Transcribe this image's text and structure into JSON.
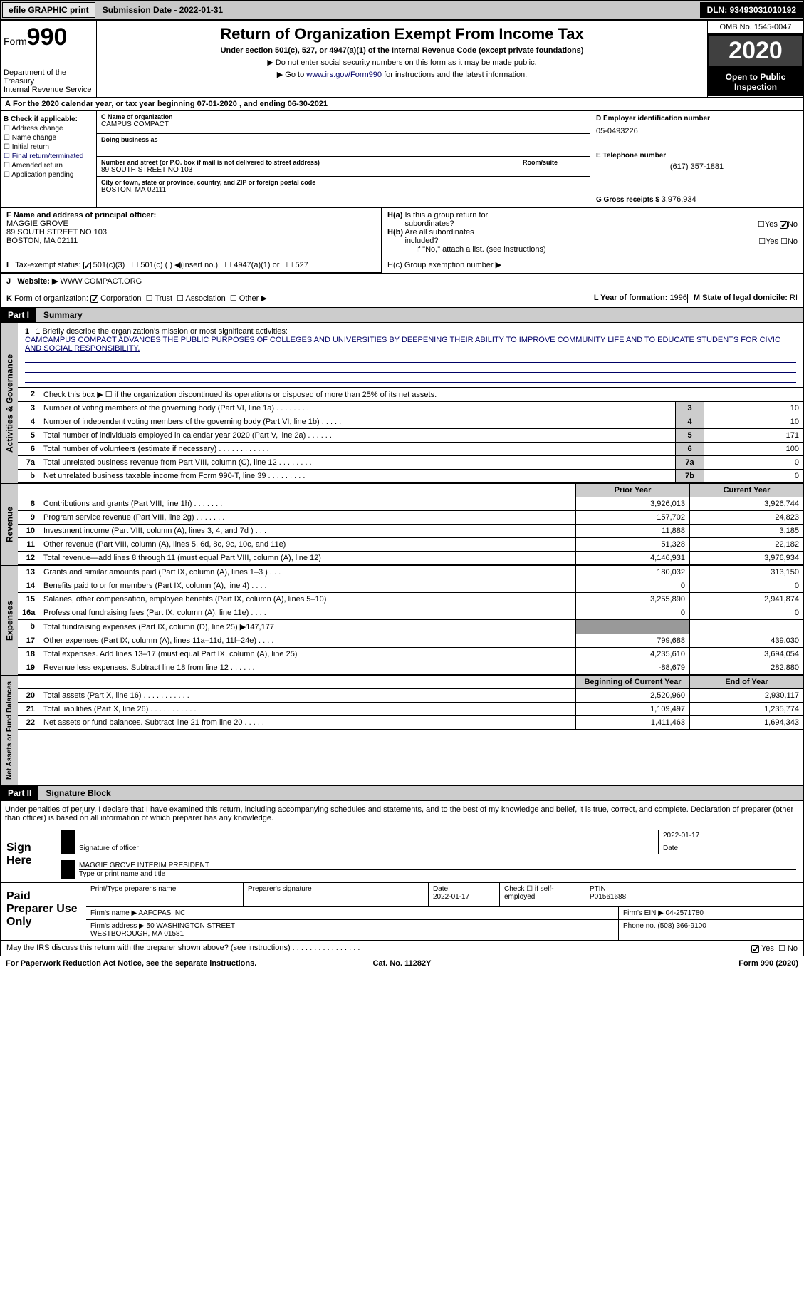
{
  "topbar": {
    "efile": "efile GRAPHIC print",
    "submission_label": "Submission Date - ",
    "submission_date": "2022-01-31",
    "dln_label": "DLN: ",
    "dln": "93493031010192"
  },
  "header": {
    "form": "Form",
    "form_num": "990",
    "dept": "Department of the Treasury\nInternal Revenue Service",
    "title": "Return of Organization Exempt From Income Tax",
    "subtitle": "Under section 501(c), 527, or 4947(a)(1) of the Internal Revenue Code (except private foundations)",
    "arrow1": "▶ Do not enter social security numbers on this form as it may be made public.",
    "arrow2_pre": "▶ Go to ",
    "arrow2_link": "www.irs.gov/Form990",
    "arrow2_post": " for instructions and the latest information.",
    "omb": "OMB No. 1545-0047",
    "year": "2020",
    "open": "Open to Public Inspection"
  },
  "period": {
    "label_a": "A",
    "text": "For the 2020 calendar year, or tax year beginning 07-01-2020    , and ending 06-30-2021"
  },
  "section_b": {
    "label": "B Check if applicable:",
    "items": [
      "Address change",
      "Name change",
      "Initial return",
      "Final return/terminated",
      "Amended return",
      "Application pending"
    ]
  },
  "section_c": {
    "name_label": "C Name of organization",
    "name": "CAMPUS COMPACT",
    "dba_label": "Doing business as",
    "dba": "",
    "addr_label": "Number and street (or P.O. box if mail is not delivered to street address)",
    "addr": "89 SOUTH STREET NO 103",
    "room_label": "Room/suite",
    "room": "",
    "city_label": "City or town, state or province, country, and ZIP or foreign postal code",
    "city": "BOSTON, MA  02111"
  },
  "section_d": {
    "ein_label": "D Employer identification number",
    "ein": "05-0493226",
    "phone_label": "E Telephone number",
    "phone": "(617) 357-1881",
    "gross_label": "G Gross receipts $ ",
    "gross": "3,976,934"
  },
  "section_f": {
    "label": "F Name and address of principal officer:",
    "name": "MAGGIE GROVE",
    "addr": "89 SOUTH STREET NO 103\nBOSTON, MA  02111"
  },
  "section_h": {
    "ha_label": "H(a)  Is this a group return for subordinates?",
    "hb_label": "H(b)  Are all subordinates included?",
    "hb_note": "If \"No,\" attach a list. (see instructions)",
    "hc_label": "H(c)  Group exemption number ▶",
    "yes": "Yes",
    "no": "No"
  },
  "section_i": {
    "label": "I   Tax-exempt status:",
    "opts": [
      "501(c)(3)",
      "501(c) (  ) ◀(insert no.)",
      "4947(a)(1) or",
      "527"
    ]
  },
  "section_j": {
    "label": "J   Website: ▶",
    "val": "WWW.COMPACT.ORG"
  },
  "section_k": {
    "label": "K Form of organization:",
    "opts": [
      "Corporation",
      "Trust",
      "Association",
      "Other ▶"
    ],
    "l_label": "L Year of formation: ",
    "l_val": "1996",
    "m_label": "M State of legal domicile: ",
    "m_val": "RI"
  },
  "parts": {
    "p1": "Part I",
    "p1_title": "Summary",
    "p2": "Part II",
    "p2_title": "Signature Block"
  },
  "side_labels": {
    "gov": "Activities & Governance",
    "rev": "Revenue",
    "exp": "Expenses",
    "net": "Net Assets or Fund Balances"
  },
  "mission": {
    "label": "1   Briefly describe the organization's mission or most significant activities:",
    "text": "CAMCAMPUS COMPACT ADVANCES THE PUBLIC PURPOSES OF COLLEGES AND UNIVERSITIES BY DEEPENING THEIR ABILITY TO IMPROVE COMMUNITY LIFE AND TO EDUCATE STUDENTS FOR CIVIC AND SOCIAL RESPONSIBILITY."
  },
  "gov_rows": [
    {
      "n": "2",
      "t": "Check this box ▶ ☐  if the organization discontinued its operations or disposed of more than 25% of its net assets.",
      "bn": "",
      "v": ""
    },
    {
      "n": "3",
      "t": "Number of voting members of the governing body (Part VI, line 1a)   .    .    .    .    .    .    .    .",
      "bn": "3",
      "v": "10"
    },
    {
      "n": "4",
      "t": "Number of independent voting members of the governing body (Part VI, line 1b)   .    .    .    .    .",
      "bn": "4",
      "v": "10"
    },
    {
      "n": "5",
      "t": "Total number of individuals employed in calendar year 2020 (Part V, line 2a)   .    .    .    .    .    .",
      "bn": "5",
      "v": "171"
    },
    {
      "n": "6",
      "t": "Total number of volunteers (estimate if necessary)   .    .    .    .    .    .    .    .    .    .    .    .",
      "bn": "6",
      "v": "100"
    },
    {
      "n": "7a",
      "t": "Total unrelated business revenue from Part VIII, column (C), line 12   .    .    .    .    .    .    .    .",
      "bn": "7a",
      "v": "0"
    },
    {
      "n": "b",
      "t": "Net unrelated business taxable income from Form 990-T, line 39    .    .    .    .    .    .    .    .    .",
      "bn": "7b",
      "v": "0"
    }
  ],
  "fin_headers": {
    "prior": "Prior Year",
    "current": "Current Year",
    "begin": "Beginning of Current Year",
    "end": "End of Year"
  },
  "rev_rows": [
    {
      "n": "8",
      "t": "Contributions and grants (Part VIII, line 1h)   .    .    .    .    .    .    .",
      "c1": "3,926,013",
      "c2": "3,926,744"
    },
    {
      "n": "9",
      "t": "Program service revenue (Part VIII, line 2g)   .    .    .    .    .    .    .",
      "c1": "157,702",
      "c2": "24,823"
    },
    {
      "n": "10",
      "t": "Investment income (Part VIII, column (A), lines 3, 4, and 7d )   .    .    .",
      "c1": "11,888",
      "c2": "3,185"
    },
    {
      "n": "11",
      "t": "Other revenue (Part VIII, column (A), lines 5, 6d, 8c, 9c, 10c, and 11e)",
      "c1": "51,328",
      "c2": "22,182"
    },
    {
      "n": "12",
      "t": "Total revenue—add lines 8 through 11 (must equal Part VIII, column (A), line 12)",
      "c1": "4,146,931",
      "c2": "3,976,934"
    }
  ],
  "exp_rows": [
    {
      "n": "13",
      "t": "Grants and similar amounts paid (Part IX, column (A), lines 1–3 )   .    .    .",
      "c1": "180,032",
      "c2": "313,150"
    },
    {
      "n": "14",
      "t": "Benefits paid to or for members (Part IX, column (A), line 4)   .    .    .    .",
      "c1": "0",
      "c2": "0"
    },
    {
      "n": "15",
      "t": "Salaries, other compensation, employee benefits (Part IX, column (A), lines 5–10)",
      "c1": "3,255,890",
      "c2": "2,941,874"
    },
    {
      "n": "16a",
      "t": "Professional fundraising fees (Part IX, column (A), line 11e)   .    .    .    .",
      "c1": "0",
      "c2": "0"
    },
    {
      "n": "b",
      "t": "Total fundraising expenses (Part IX, column (D), line 25) ▶147,177",
      "c1": "",
      "c2": "",
      "shaded": true
    },
    {
      "n": "17",
      "t": "Other expenses (Part IX, column (A), lines 11a–11d, 11f–24e)   .    .    .    .",
      "c1": "799,688",
      "c2": "439,030"
    },
    {
      "n": "18",
      "t": "Total expenses. Add lines 13–17 (must equal Part IX, column (A), line 25)",
      "c1": "4,235,610",
      "c2": "3,694,054"
    },
    {
      "n": "19",
      "t": "Revenue less expenses. Subtract line 18 from line 12   .    .    .    .    .    .",
      "c1": "-88,679",
      "c2": "282,880"
    }
  ],
  "net_rows": [
    {
      "n": "20",
      "t": "Total assets (Part X, line 16)   .    .    .    .    .    .    .    .    .    .    .",
      "c1": "2,520,960",
      "c2": "2,930,117"
    },
    {
      "n": "21",
      "t": "Total liabilities (Part X, line 26)   .    .    .    .    .    .    .    .    .    .    .",
      "c1": "1,109,497",
      "c2": "1,235,774"
    },
    {
      "n": "22",
      "t": "Net assets or fund balances. Subtract line 21 from line 20   .    .    .    .    .",
      "c1": "1,411,463",
      "c2": "1,694,343"
    }
  ],
  "sig": {
    "declaration": "Under penalties of perjury, I declare that I have examined this return, including accompanying schedules and statements, and to the best of my knowledge and belief, it is true, correct, and complete. Declaration of preparer (other than officer) is based on all information of which preparer has any knowledge.",
    "sign_here": "Sign Here",
    "sig_officer": "Signature of officer",
    "sig_date": "2022-01-17",
    "date_label": "Date",
    "officer_name": "MAGGIE GROVE INTERIM PRESIDENT",
    "name_label": "Type or print name and title"
  },
  "prep": {
    "label": "Paid Preparer Use Only",
    "print_label": "Print/Type preparer's name",
    "sig_label": "Preparer's signature",
    "date_label": "Date",
    "date": "2022-01-17",
    "check_label": "Check ☐ if self-employed",
    "ptin_label": "PTIN",
    "ptin": "P01561688",
    "firm_label": "Firm's name    ▶",
    "firm": "AAFCPAS INC",
    "ein_label": "Firm's EIN ▶",
    "ein": "04-2571780",
    "addr_label": "Firm's address ▶",
    "addr": "50 WASHINGTON STREET\nWESTBOROUGH, MA  01581",
    "phone_label": "Phone no. ",
    "phone": "(508) 366-9100"
  },
  "footer": {
    "discuss": "May the IRS discuss this return with the preparer shown above? (see instructions)   .    .    .    .    .    .    .    .    .    .    .    .    .    .    .    .",
    "yes": "Yes",
    "no": "No",
    "pra": "For Paperwork Reduction Act Notice, see the separate instructions.",
    "cat": "Cat. No. 11282Y",
    "form": "Form 990 (2020)"
  }
}
